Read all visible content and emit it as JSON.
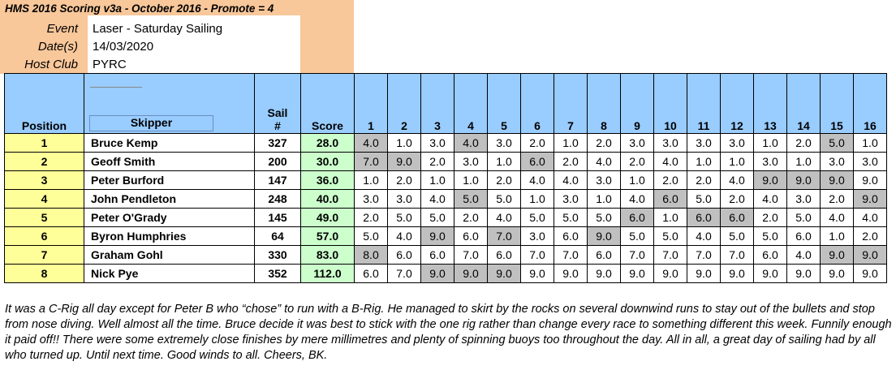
{
  "header": {
    "title": "HMS 2016 Scoring v3a - October 2016 - Promote = 4",
    "event_label": "Event",
    "event_value": "Laser - Saturday Sailing",
    "date_label": "Date(s)",
    "date_value": "14/03/2020",
    "club_label": "Host Club",
    "club_value": "PYRC"
  },
  "columns": {
    "position": "Position",
    "skipper": "Skipper",
    "sail_line1": "Sail",
    "sail_line2": "#",
    "score": "Score",
    "races": [
      "1",
      "2",
      "3",
      "4",
      "5",
      "6",
      "7",
      "8",
      "9",
      "10",
      "11",
      "12",
      "13",
      "14",
      "15",
      "16"
    ]
  },
  "rows": [
    {
      "pos": "1",
      "skipper": "Bruce Kemp",
      "sail": "327",
      "score": "28.0",
      "races": [
        "4.0",
        "1.0",
        "3.0",
        "4.0",
        "3.0",
        "2.0",
        "1.0",
        "2.0",
        "3.0",
        "3.0",
        "3.0",
        "3.0",
        "1.0",
        "2.0",
        "5.0",
        "1.0"
      ],
      "disc": [
        true,
        false,
        false,
        true,
        false,
        false,
        false,
        false,
        false,
        false,
        false,
        false,
        false,
        false,
        true,
        false
      ]
    },
    {
      "pos": "2",
      "skipper": "Geoff Smith",
      "sail": "200",
      "score": "30.0",
      "races": [
        "7.0",
        "9.0",
        "2.0",
        "3.0",
        "1.0",
        "6.0",
        "2.0",
        "4.0",
        "2.0",
        "4.0",
        "1.0",
        "1.0",
        "3.0",
        "1.0",
        "3.0",
        "3.0"
      ],
      "disc": [
        true,
        true,
        false,
        false,
        false,
        true,
        false,
        false,
        false,
        false,
        false,
        false,
        false,
        false,
        false,
        false
      ]
    },
    {
      "pos": "3",
      "skipper": "Peter Burford",
      "sail": "147",
      "score": "36.0",
      "races": [
        "1.0",
        "2.0",
        "1.0",
        "1.0",
        "2.0",
        "4.0",
        "4.0",
        "3.0",
        "1.0",
        "2.0",
        "2.0",
        "4.0",
        "9.0",
        "9.0",
        "9.0",
        "9.0"
      ],
      "disc": [
        false,
        false,
        false,
        false,
        false,
        false,
        false,
        false,
        false,
        false,
        false,
        false,
        true,
        true,
        true,
        false
      ]
    },
    {
      "pos": "4",
      "skipper": "John Pendleton",
      "sail": "248",
      "score": "40.0",
      "races": [
        "3.0",
        "3.0",
        "4.0",
        "5.0",
        "5.0",
        "1.0",
        "3.0",
        "1.0",
        "4.0",
        "6.0",
        "5.0",
        "2.0",
        "4.0",
        "3.0",
        "2.0",
        "9.0"
      ],
      "disc": [
        false,
        false,
        false,
        true,
        false,
        false,
        false,
        false,
        false,
        true,
        false,
        false,
        false,
        false,
        false,
        true
      ]
    },
    {
      "pos": "5",
      "skipper": "Peter O'Grady",
      "sail": "145",
      "score": "49.0",
      "races": [
        "2.0",
        "5.0",
        "5.0",
        "2.0",
        "4.0",
        "5.0",
        "5.0",
        "5.0",
        "6.0",
        "1.0",
        "6.0",
        "6.0",
        "2.0",
        "5.0",
        "4.0",
        "4.0"
      ],
      "disc": [
        false,
        false,
        false,
        false,
        false,
        false,
        false,
        false,
        true,
        false,
        true,
        true,
        false,
        false,
        false,
        false
      ]
    },
    {
      "pos": "6",
      "skipper": "Byron Humphries",
      "sail": "64",
      "score": "57.0",
      "races": [
        "5.0",
        "4.0",
        "9.0",
        "6.0",
        "7.0",
        "3.0",
        "6.0",
        "9.0",
        "5.0",
        "5.0",
        "4.0",
        "5.0",
        "5.0",
        "6.0",
        "1.0",
        "2.0"
      ],
      "disc": [
        false,
        false,
        true,
        false,
        true,
        false,
        false,
        true,
        false,
        false,
        false,
        false,
        false,
        false,
        false,
        false
      ]
    },
    {
      "pos": "7",
      "skipper": "Graham Gohl",
      "sail": "330",
      "score": "83.0",
      "races": [
        "8.0",
        "6.0",
        "6.0",
        "7.0",
        "6.0",
        "7.0",
        "7.0",
        "6.0",
        "7.0",
        "7.0",
        "7.0",
        "7.0",
        "6.0",
        "4.0",
        "9.0",
        "9.0"
      ],
      "disc": [
        true,
        false,
        false,
        false,
        false,
        false,
        false,
        false,
        false,
        false,
        false,
        false,
        false,
        false,
        true,
        true
      ]
    },
    {
      "pos": "8",
      "skipper": "Nick Pye",
      "sail": "352",
      "score": "112.0",
      "races": [
        "6.0",
        "7.0",
        "9.0",
        "9.0",
        "9.0",
        "9.0",
        "9.0",
        "9.0",
        "9.0",
        "9.0",
        "9.0",
        "9.0",
        "9.0",
        "9.0",
        "9.0",
        "9.0"
      ],
      "disc": [
        false,
        false,
        true,
        true,
        true,
        false,
        false,
        false,
        false,
        false,
        false,
        false,
        false,
        false,
        false,
        false
      ]
    }
  ],
  "comment": "It was a C-Rig all day except for Peter B who “chose” to run with a B-Rig. He managed to skirt by the rocks on several downwind runs to stay out of the bullets and stop from nose diving. Well almost all the time. Bruce decide it was best to stick with the one rig rather than change every race to something different this week. Funnily enough it paid off!! There were some extremely close finishes by mere millimetres and plenty of spinning buoys too throughout the day. All in all, a great day of sailing had by all who turned up. Until next time. Good winds to all. Cheers, BK."
}
